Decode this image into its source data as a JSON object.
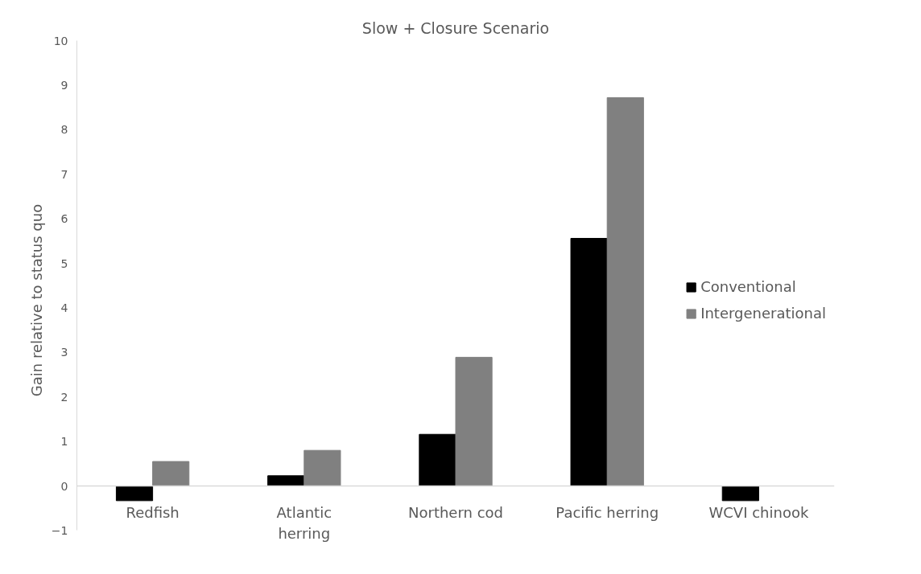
{
  "chart_data": {
    "type": "bar",
    "title": "Slow + Closure Scenario",
    "ylabel": "Gain relative to status quo",
    "categories": [
      "Redfish",
      "Atlantic herring",
      "Northern cod",
      "Pacific herring",
      "WCVI chinook"
    ],
    "series": [
      {
        "name": "Conventional",
        "color": "#000000",
        "values": [
          -0.33,
          0.23,
          1.16,
          5.56,
          -0.33
        ]
      },
      {
        "name": "Intergenerational",
        "color": "#808080",
        "values": [
          0.55,
          0.8,
          2.89,
          8.72,
          null
        ]
      }
    ],
    "ylim": [
      -1,
      10
    ],
    "yticks": [
      -1,
      0,
      1,
      2,
      3,
      4,
      5,
      6,
      7,
      8,
      9,
      10
    ],
    "grid": false,
    "legend": "right"
  }
}
